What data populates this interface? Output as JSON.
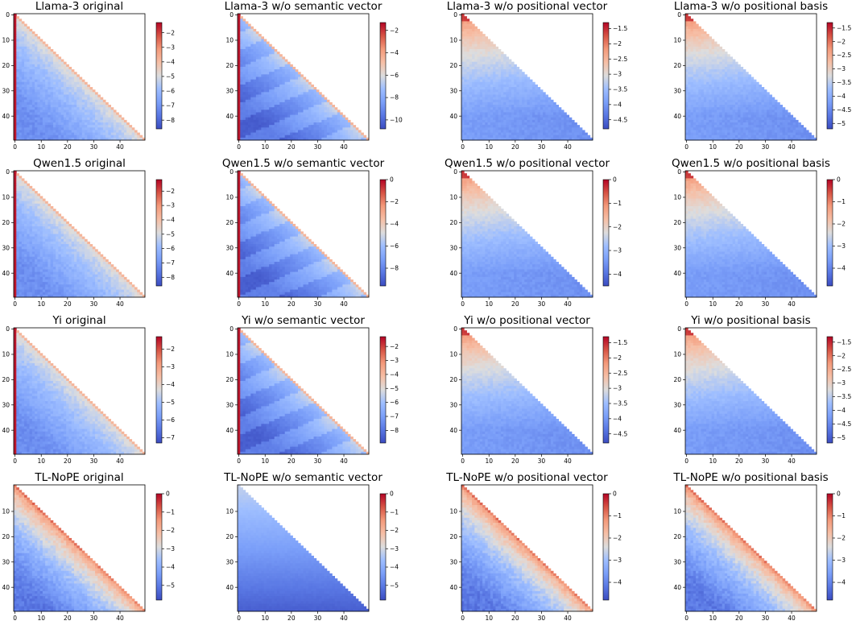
{
  "chart_data": [
    {
      "type": "heatmap",
      "title": "Llama-3 original",
      "model": "Llama-3",
      "variant": "original",
      "range": [
        -8.6,
        -1.3
      ],
      "cbar_ticks": [
        -2,
        -3,
        -4,
        -5,
        -6,
        -7,
        -8
      ],
      "xticks": [
        0,
        10,
        20,
        30,
        40
      ],
      "yticks": [
        0,
        10,
        20,
        30,
        40
      ],
      "size": 50,
      "pattern": "original"
    },
    {
      "type": "heatmap",
      "title": "Llama-3 w/o semantic vector",
      "model": "Llama-3",
      "variant": "w/o semantic vector",
      "range": [
        -10.8,
        -1.3
      ],
      "cbar_ticks": [
        -2,
        -4,
        -6,
        -8,
        -10
      ],
      "xticks": [
        0,
        10,
        20,
        30,
        40
      ],
      "yticks": [
        0,
        10,
        20,
        30,
        40
      ],
      "size": 50,
      "pattern": "semantic"
    },
    {
      "type": "heatmap",
      "title": "Llama-3 w/o positional vector",
      "model": "Llama-3",
      "variant": "w/o positional vector",
      "range": [
        -4.8,
        -1.3
      ],
      "cbar_ticks": [
        -1.5,
        -2.0,
        -2.5,
        -3.0,
        -3.5,
        -4.0,
        -4.5
      ],
      "xticks": [
        0,
        10,
        20,
        30,
        40
      ],
      "yticks": [
        0,
        10,
        20,
        30,
        40
      ],
      "size": 50,
      "pattern": "positional"
    },
    {
      "type": "heatmap",
      "title": "Llama-3 w/o positional basis",
      "model": "Llama-3",
      "variant": "w/o positional basis",
      "range": [
        -5.2,
        -1.3
      ],
      "cbar_ticks": [
        -1.5,
        -2.0,
        -2.5,
        -3.0,
        -3.5,
        -4.0,
        -4.5,
        -5.0
      ],
      "xticks": [
        0,
        10,
        20,
        30,
        40
      ],
      "yticks": [
        0,
        10,
        20,
        30,
        40
      ],
      "size": 50,
      "pattern": "positional"
    },
    {
      "type": "heatmap",
      "title": "Qwen1.5 original",
      "model": "Qwen1.5",
      "variant": "original",
      "range": [
        -8.6,
        -1.2
      ],
      "cbar_ticks": [
        -2,
        -3,
        -4,
        -5,
        -6,
        -7,
        -8
      ],
      "xticks": [
        0,
        10,
        20,
        30,
        40
      ],
      "yticks": [
        0,
        10,
        20,
        30,
        40
      ],
      "size": 50,
      "pattern": "original"
    },
    {
      "type": "heatmap",
      "title": "Qwen1.5 w/o semantic vector",
      "model": "Qwen1.5",
      "variant": "w/o semantic vector",
      "range": [
        -9.6,
        0
      ],
      "cbar_ticks": [
        0,
        -2,
        -4,
        -6,
        -8
      ],
      "xticks": [
        0,
        10,
        20,
        30,
        40
      ],
      "yticks": [
        0,
        10,
        20,
        30,
        40
      ],
      "size": 50,
      "pattern": "semantic"
    },
    {
      "type": "heatmap",
      "title": "Qwen1.5 w/o positional vector",
      "model": "Qwen1.5",
      "variant": "w/o positional vector",
      "range": [
        -4.5,
        0
      ],
      "cbar_ticks": [
        0,
        -1,
        -2,
        -3,
        -4
      ],
      "xticks": [
        0,
        10,
        20,
        30,
        40
      ],
      "yticks": [
        0,
        10,
        20,
        30,
        40
      ],
      "size": 50,
      "pattern": "positional"
    },
    {
      "type": "heatmap",
      "title": "Qwen1.5 w/o positional basis",
      "model": "Qwen1.5",
      "variant": "w/o positional basis",
      "range": [
        -4.8,
        0
      ],
      "cbar_ticks": [
        0,
        -1,
        -2,
        -3,
        -4
      ],
      "xticks": [
        0,
        10,
        20,
        30,
        40
      ],
      "yticks": [
        0,
        10,
        20,
        30,
        40
      ],
      "size": 50,
      "pattern": "positional"
    },
    {
      "type": "heatmap",
      "title": "Yi original",
      "model": "Yi",
      "variant": "original",
      "range": [
        -7.3,
        -1.3
      ],
      "cbar_ticks": [
        -2,
        -3,
        -4,
        -5,
        -6,
        -7
      ],
      "xticks": [
        0,
        10,
        20,
        30,
        40
      ],
      "yticks": [
        0,
        10,
        20,
        30,
        40
      ],
      "size": 50,
      "pattern": "original"
    },
    {
      "type": "heatmap",
      "title": "Yi w/o semantic vector",
      "model": "Yi",
      "variant": "w/o semantic vector",
      "range": [
        -8.9,
        -1.3
      ],
      "cbar_ticks": [
        -2,
        -3,
        -4,
        -5,
        -6,
        -7,
        -8
      ],
      "xticks": [
        0,
        10,
        20,
        30,
        40
      ],
      "yticks": [
        0,
        10,
        20,
        30,
        40
      ],
      "size": 50,
      "pattern": "semantic"
    },
    {
      "type": "heatmap",
      "title": "Yi w/o positional vector",
      "model": "Yi",
      "variant": "w/o positional vector",
      "range": [
        -4.8,
        -1.3
      ],
      "cbar_ticks": [
        -1.5,
        -2.0,
        -2.5,
        -3.0,
        -3.5,
        -4.0,
        -4.5
      ],
      "xticks": [
        0,
        10,
        20,
        30,
        40
      ],
      "yticks": [
        0,
        10,
        20,
        30,
        40
      ],
      "size": 50,
      "pattern": "positional"
    },
    {
      "type": "heatmap",
      "title": "Yi w/o positional basis",
      "model": "Yi",
      "variant": "w/o positional basis",
      "range": [
        -5.2,
        -1.3
      ],
      "cbar_ticks": [
        -1.5,
        -2.0,
        -2.5,
        -3.0,
        -3.5,
        -4.0,
        -4.5,
        -5.0
      ],
      "xticks": [
        0,
        10,
        20,
        30,
        40
      ],
      "yticks": [
        0,
        10,
        20,
        30,
        40
      ],
      "size": 50,
      "pattern": "positional"
    },
    {
      "type": "heatmap",
      "title": "TL-NoPE original",
      "model": "TL-NoPE",
      "variant": "original",
      "range": [
        -5.8,
        0
      ],
      "cbar_ticks": [
        0,
        -1,
        -2,
        -3,
        -4,
        -5
      ],
      "xticks": [
        0,
        10,
        20,
        30,
        40
      ],
      "yticks": [
        10,
        20,
        30,
        40
      ],
      "size": 50,
      "pattern": "nope"
    },
    {
      "type": "heatmap",
      "title": "TL-NoPE w/o semantic vector",
      "model": "TL-NoPE",
      "variant": "w/o semantic vector",
      "range": [
        -5.8,
        0
      ],
      "cbar_ticks": [
        0,
        -1,
        -2,
        -3,
        -4,
        -5
      ],
      "xticks": [
        0,
        10,
        20,
        30,
        40
      ],
      "yticks": [
        10,
        20,
        30,
        40
      ],
      "size": 50,
      "pattern": "nope-sem"
    },
    {
      "type": "heatmap",
      "title": "TL-NoPE w/o positional vector",
      "model": "TL-NoPE",
      "variant": "w/o positional vector",
      "range": [
        -4.8,
        0
      ],
      "cbar_ticks": [
        0,
        -1,
        -2,
        -3,
        -4
      ],
      "xticks": [
        0,
        10,
        20,
        30,
        40
      ],
      "yticks": [
        10,
        20,
        30,
        40
      ],
      "size": 50,
      "pattern": "nope"
    },
    {
      "type": "heatmap",
      "title": "TL-NoPE w/o positional basis",
      "model": "TL-NoPE",
      "variant": "w/o positional basis",
      "range": [
        -4.8,
        0
      ],
      "cbar_ticks": [
        0,
        -1,
        -2,
        -3,
        -4
      ],
      "xticks": [
        0,
        10,
        20,
        30,
        40
      ],
      "yticks": [
        10,
        20,
        30,
        40
      ],
      "size": 50,
      "pattern": "nope"
    }
  ],
  "colormap": "coolwarm",
  "colors": {
    "low": "#3b4cc0",
    "mid": "#dddddd",
    "high": "#b40426"
  }
}
